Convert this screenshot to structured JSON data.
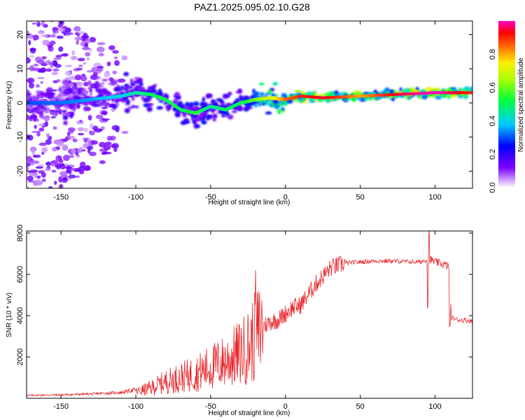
{
  "title": "PAZ1.2025.095.02.10.G28",
  "colors": {
    "snr_line": "#e8262b",
    "axes": "#000000"
  },
  "chart_data": [
    {
      "type": "heatmap",
      "xlabel": "Height of straight line (km)",
      "ylabel": "Frequency (Hz)",
      "xlim": [
        -173,
        125
      ],
      "ylim": [
        -25,
        24
      ],
      "xticks": [
        -150,
        -100,
        -50,
        0,
        50,
        100
      ],
      "yticks": [
        -20,
        -10,
        0,
        10,
        20
      ],
      "colorbar": {
        "label": "Normalized spectral amplitude",
        "range": [
          0,
          1
        ],
        "ticks": [
          0.0,
          0.2,
          0.4,
          0.6,
          0.8
        ],
        "colormap": "rainbow (white-violet-blue-cyan-green-yellow-red-magenta)"
      },
      "ridge": {
        "x": [
          -170,
          -150,
          -130,
          -110,
          -100,
          -90,
          -80,
          -70,
          -60,
          -50,
          -40,
          -30,
          -20,
          -10,
          0,
          10,
          25,
          50,
          75,
          100,
          125
        ],
        "frequency": [
          0,
          0,
          1,
          2,
          3,
          2.5,
          1,
          -2,
          -3,
          -1,
          -2,
          0,
          1,
          1.5,
          1,
          2,
          1.5,
          2,
          2.5,
          3,
          3
        ],
        "amplitude": [
          0.3,
          0.32,
          0.35,
          0.4,
          0.45,
          0.5,
          0.52,
          0.5,
          0.55,
          0.45,
          0.5,
          0.5,
          0.6,
          0.7,
          0.85,
          0.9,
          0.95,
          0.8,
          0.95,
          1.0,
          0.9
        ]
      }
    },
    {
      "type": "line",
      "xlabel": "Height of straight line (km)",
      "ylabel": "SNR (10 * v/v)",
      "xlim": [
        -173,
        125
      ],
      "ylim": [
        0,
        8100
      ],
      "xticks": [
        -150,
        -100,
        -50,
        0,
        50,
        100
      ],
      "yticks": [
        2000,
        4000,
        6000,
        8000
      ],
      "series": [
        {
          "x": [
            -173,
            -150,
            -130,
            -110,
            -100,
            -90,
            -80,
            -70,
            -60,
            -50,
            -40,
            -30,
            -25,
            -20,
            -15,
            -10,
            -5,
            0,
            5,
            10,
            20,
            30,
            40,
            50,
            60,
            70,
            80,
            90,
            94,
            96,
            100,
            105,
            109,
            111,
            115,
            125
          ],
          "y": [
            100,
            120,
            150,
            200,
            300,
            500,
            800,
            1000,
            1200,
            1500,
            1800,
            2200,
            2500,
            3000,
            3500,
            3700,
            3800,
            4100,
            4400,
            4500,
            5500,
            6300,
            6550,
            6600,
            6650,
            6650,
            6620,
            6600,
            6700,
            6750,
            6600,
            6500,
            6400,
            3900,
            3800,
            3750
          ]
        }
      ]
    }
  ]
}
